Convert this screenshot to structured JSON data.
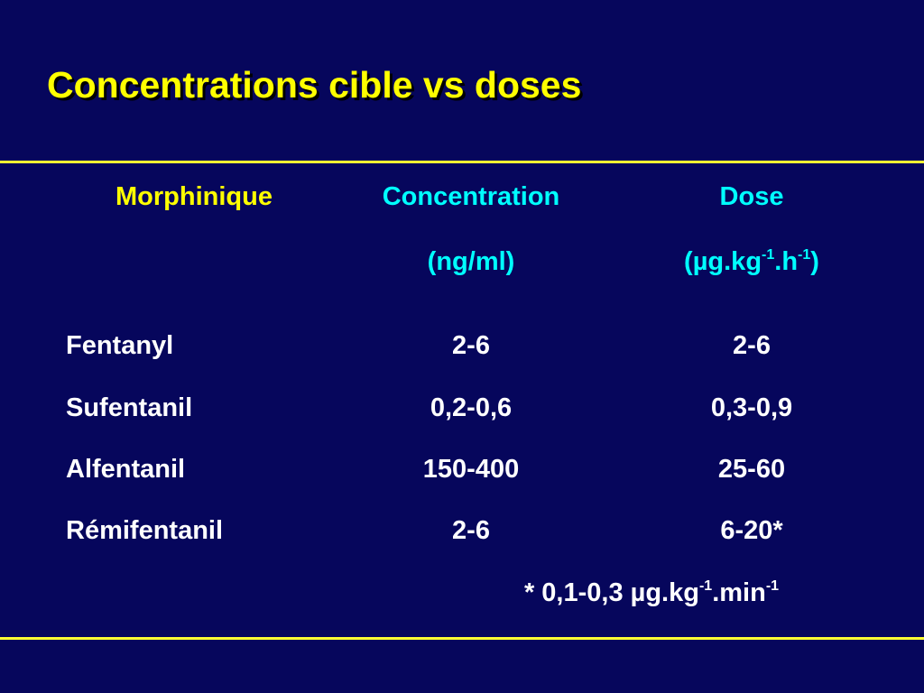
{
  "header": {
    "title": "Concentrations cible vs doses"
  },
  "table": {
    "columns": [
      "Morphinique",
      "Concentration",
      "Dose"
    ],
    "units": [
      [
        "(ng/ml)"
      ],
      [
        "(µg.kg",
        "-1",
        ".h",
        "-1",
        ")"
      ]
    ],
    "rows": [
      [
        "Fentanyl",
        "2-6",
        "2-6"
      ],
      [
        "Sufentanil",
        "0,2-0,6",
        "0,3-0,9"
      ],
      [
        "Alfentanil",
        "150-400",
        "25-60"
      ],
      [
        "Rémifentanil",
        "2-6",
        "6-20*"
      ]
    ]
  },
  "footnote": [
    "* 0,1-0,3 µg.kg",
    "-1",
    ".min",
    "-1"
  ]
}
